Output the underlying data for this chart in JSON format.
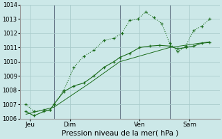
{
  "xlabel": "Pression niveau de la mer( hPa )",
  "bg_color": "#cce8e8",
  "grid_color": "#aacccc",
  "line_color": "#1a6b1a",
  "ylim": [
    1006.0,
    1014.0
  ],
  "yticks": [
    1006,
    1007,
    1008,
    1009,
    1010,
    1011,
    1012,
    1013,
    1014
  ],
  "xlim": [
    0.0,
    10.0
  ],
  "x_tick_positions": [
    0.5,
    2.5,
    6.0,
    8.5
  ],
  "x_tick_labels": [
    "Jeu",
    "Dim",
    "Ven",
    "Sam"
  ],
  "vlines_x": [
    1.7,
    5.0,
    7.5
  ],
  "vline_color": "#667788",
  "series1_x": [
    0.3,
    0.7,
    1.2,
    1.5,
    1.7,
    2.2,
    2.7,
    3.2,
    3.7,
    4.2,
    4.7,
    5.1,
    5.5,
    5.9,
    6.3,
    6.7,
    7.1,
    7.5,
    7.9,
    8.3,
    8.7,
    9.1,
    9.5
  ],
  "series1_y": [
    1007.0,
    1006.5,
    1006.6,
    1006.6,
    1007.0,
    1008.0,
    1009.6,
    1010.4,
    1010.8,
    1011.5,
    1011.65,
    1012.0,
    1012.9,
    1013.0,
    1013.5,
    1013.1,
    1012.7,
    1011.3,
    1010.7,
    1011.1,
    1012.2,
    1012.5,
    1013.0
  ],
  "series2_x": [
    0.3,
    0.7,
    1.2,
    1.5,
    1.7,
    2.2,
    2.7,
    3.2,
    3.7,
    4.2,
    4.7,
    5.0,
    5.5,
    6.0,
    6.5,
    7.0,
    7.5,
    7.9,
    8.3,
    8.7,
    9.1,
    9.5
  ],
  "series2_y": [
    1006.5,
    1006.2,
    1006.5,
    1006.6,
    1007.0,
    1007.9,
    1008.3,
    1008.5,
    1009.0,
    1009.6,
    1010.0,
    1010.3,
    1010.6,
    1011.0,
    1011.1,
    1011.15,
    1011.1,
    1010.9,
    1011.0,
    1011.1,
    1011.3,
    1011.35
  ],
  "series3_x": [
    0.3,
    1.7,
    3.5,
    5.0,
    7.5,
    9.5
  ],
  "series3_y": [
    1006.3,
    1006.8,
    1008.5,
    1010.0,
    1011.0,
    1011.4
  ]
}
